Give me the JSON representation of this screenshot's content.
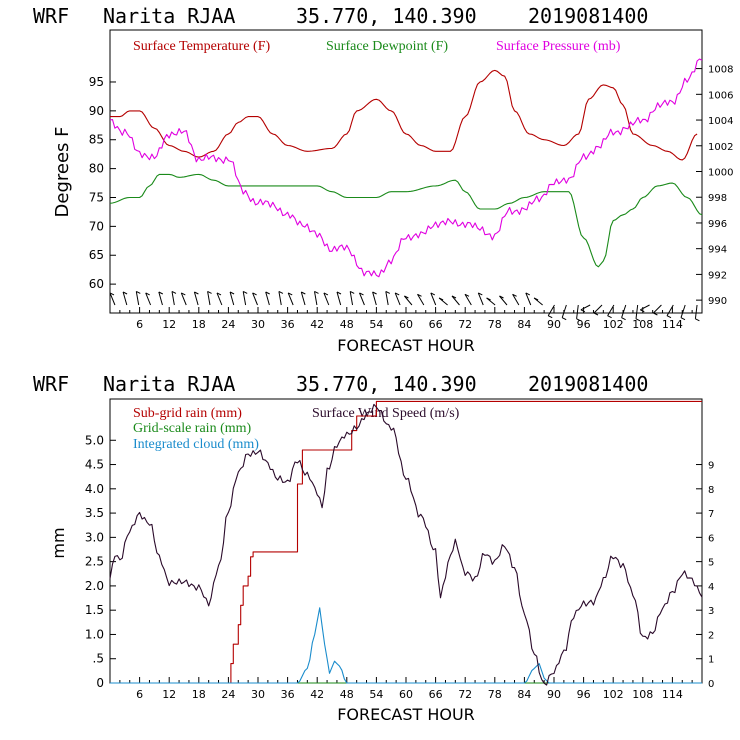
{
  "chart_data": [
    {
      "type": "line",
      "header": {
        "model": "WRF",
        "station": "Narita RJAA",
        "coords": "35.770, 140.390",
        "init": "2019081400"
      },
      "xlabel": "FORECAST HOUR",
      "ylabel": "Degrees F",
      "xlim": [
        0,
        120
      ],
      "ylim": [
        55,
        104
      ],
      "x_ticks": [
        "6",
        "12",
        "18",
        "24",
        "30",
        "36",
        "42",
        "48",
        "54",
        "60",
        "66",
        "72",
        "78",
        "84",
        "90",
        "96",
        "102",
        "108",
        "114"
      ],
      "left_ticks": [
        "60",
        "65",
        "70",
        "75",
        "80",
        "85",
        "90",
        "95"
      ],
      "right_ylim": [
        989,
        1011
      ],
      "right_ticks": [
        "990",
        "992",
        "994",
        "996",
        "998",
        "1000",
        "1002",
        "1004",
        "1006",
        "1008"
      ],
      "legend": [
        "Surface Temperature (F)",
        "Surface Dewpoint (F)",
        "Surface Pressure (mb)"
      ],
      "colors": {
        "temp": "#b40000",
        "dew": "#1a8a1a",
        "pres": "#e000e0",
        "wind": "#222222"
      },
      "series": [
        {
          "name": "Surface Temperature (F)",
          "axis": "left",
          "points": [
            [
              0,
              89
            ],
            [
              2,
              89
            ],
            [
              4,
              90
            ],
            [
              6,
              90
            ],
            [
              9,
              87
            ],
            [
              12,
              84
            ],
            [
              15,
              83
            ],
            [
              18,
              82
            ],
            [
              21,
              83
            ],
            [
              24,
              86
            ],
            [
              26,
              88
            ],
            [
              28,
              89
            ],
            [
              30,
              89
            ],
            [
              33,
              86
            ],
            [
              36,
              84
            ],
            [
              40,
              83
            ],
            [
              45,
              83.5
            ],
            [
              48,
              86
            ],
            [
              50,
              90
            ],
            [
              54,
              92
            ],
            [
              57,
              90
            ],
            [
              60,
              86
            ],
            [
              63,
              84
            ],
            [
              66,
              83
            ],
            [
              69,
              83
            ],
            [
              72,
              89
            ],
            [
              75,
              95
            ],
            [
              78,
              97
            ],
            [
              80,
              96
            ],
            [
              82,
              90
            ],
            [
              85,
              86
            ],
            [
              88,
              85
            ],
            [
              92,
              84
            ],
            [
              95,
              86
            ],
            [
              97,
              92
            ],
            [
              100,
              94.5
            ],
            [
              102,
              94
            ],
            [
              104,
              91
            ],
            [
              106,
              86
            ],
            [
              110,
              84
            ],
            [
              113,
              83
            ],
            [
              116,
              81.5
            ],
            [
              119,
              86
            ]
          ]
        },
        {
          "name": "Surface Dewpoint (F)",
          "axis": "left",
          "points": [
            [
              0,
              74
            ],
            [
              4,
              75
            ],
            [
              6,
              75
            ],
            [
              8,
              77
            ],
            [
              10,
              79
            ],
            [
              12,
              79
            ],
            [
              14,
              78.5
            ],
            [
              18,
              79
            ],
            [
              21,
              78
            ],
            [
              24,
              77
            ],
            [
              30,
              77
            ],
            [
              36,
              77
            ],
            [
              42,
              77
            ],
            [
              45,
              76
            ],
            [
              48,
              75
            ],
            [
              51,
              75
            ],
            [
              54,
              75
            ],
            [
              57,
              76
            ],
            [
              60,
              76
            ],
            [
              66,
              77
            ],
            [
              70,
              78
            ],
            [
              72,
              76
            ],
            [
              75,
              73
            ],
            [
              78,
              73
            ],
            [
              81,
              74
            ],
            [
              84,
              75
            ],
            [
              88,
              76
            ],
            [
              93,
              76
            ],
            [
              96,
              68
            ],
            [
              99,
              63
            ],
            [
              100,
              64
            ],
            [
              102,
              71
            ],
            [
              104,
              72
            ],
            [
              106,
              73
            ],
            [
              108,
              75
            ],
            [
              111,
              77
            ],
            [
              114,
              77.5
            ],
            [
              117,
              75
            ],
            [
              120,
              72
            ]
          ]
        },
        {
          "name": "Surface Pressure (mb)",
          "axis": "right",
          "points": [
            [
              0,
              1004
            ],
            [
              3,
              1003
            ],
            [
              6,
              1001.5
            ],
            [
              9,
              1001
            ],
            [
              12,
              1003
            ],
            [
              15,
              1003
            ],
            [
              18,
              1001
            ],
            [
              21,
              1001
            ],
            [
              24,
              1001
            ],
            [
              27,
              998.5
            ],
            [
              30,
              997.5
            ],
            [
              33,
              997.5
            ],
            [
              36,
              996.5
            ],
            [
              39,
              996
            ],
            [
              42,
              995
            ],
            [
              45,
              994
            ],
            [
              48,
              994
            ],
            [
              52,
              992
            ],
            [
              54,
              992
            ],
            [
              57,
              993
            ],
            [
              60,
              995
            ],
            [
              63,
              995
            ],
            [
              66,
              996
            ],
            [
              69,
              996
            ],
            [
              72,
              996
            ],
            [
              75,
              995.5
            ],
            [
              78,
              995
            ],
            [
              81,
              997
            ],
            [
              84,
              997
            ],
            [
              87,
              998
            ],
            [
              90,
              999
            ],
            [
              93,
              999.5
            ],
            [
              96,
              1001
            ],
            [
              99,
              1002
            ],
            [
              102,
              1003
            ],
            [
              105,
              1003.5
            ],
            [
              108,
              1004
            ],
            [
              111,
              1005
            ],
            [
              114,
              1005.5
            ],
            [
              117,
              1007
            ],
            [
              120,
              1009
            ]
          ]
        }
      ],
      "wind_barb_count": 50
    },
    {
      "type": "line",
      "header": {
        "model": "WRF",
        "station": "Narita RJAA",
        "coords": "35.770, 140.390",
        "init": "2019081400"
      },
      "xlabel": "FORECAST HOUR",
      "ylabel": "mm",
      "xlim": [
        0,
        120
      ],
      "ylim": [
        0,
        5.85
      ],
      "x_ticks": [
        "6",
        "12",
        "18",
        "24",
        "30",
        "36",
        "42",
        "48",
        "54",
        "60",
        "66",
        "72",
        "78",
        "84",
        "90",
        "96",
        "102",
        "108",
        "114"
      ],
      "left_ticks": [
        "0",
        ".5",
        "1.0",
        "1.5",
        "2.0",
        "2.5",
        "3.0",
        "3.5",
        "4.0",
        "4.5",
        "5.0"
      ],
      "right_ylim": [
        0,
        11.7
      ],
      "right_ticks": [
        "0",
        "1",
        "2",
        "3",
        "4",
        "5",
        "6",
        "7",
        "8",
        "9"
      ],
      "legend": [
        "Sub-grid rain (mm)",
        "Grid-scale rain (mm)",
        "Integrated cloud (mm)",
        "Surface Wind Speed (m/s)"
      ],
      "colors": {
        "subgrid": "#b40000",
        "gridscale": "#1a8a1a",
        "cloud": "#1a8ccc",
        "wind": "#2a0a2a"
      },
      "series": [
        {
          "name": "Sub-grid rain (mm)",
          "axis": "left",
          "step": true,
          "points": [
            [
              0,
              0
            ],
            [
              24,
              0
            ],
            [
              24.5,
              0.4
            ],
            [
              25,
              0.8
            ],
            [
              26,
              1.2
            ],
            [
              26.5,
              1.6
            ],
            [
              27,
              2.0
            ],
            [
              28,
              2.2
            ],
            [
              28.5,
              2.6
            ],
            [
              29,
              2.7
            ],
            [
              37,
              2.7
            ],
            [
              38,
              4.1
            ],
            [
              39,
              4.8
            ],
            [
              48,
              4.8
            ],
            [
              49,
              5.2
            ],
            [
              50,
              5.5
            ],
            [
              54,
              5.8
            ],
            [
              120,
              5.8
            ]
          ]
        },
        {
          "name": "Grid-scale rain (mm)",
          "axis": "left",
          "points": [
            [
              0,
              0
            ],
            [
              120,
              0
            ]
          ]
        },
        {
          "name": "Integrated cloud (mm)",
          "axis": "left",
          "points": [
            [
              0,
              0
            ],
            [
              38,
              0
            ],
            [
              40,
              0.3
            ],
            [
              41.5,
              1.0
            ],
            [
              42.5,
              1.55
            ],
            [
              43.5,
              0.8
            ],
            [
              44.5,
              0.2
            ],
            [
              45.5,
              0.45
            ],
            [
              46.5,
              0.35
            ],
            [
              48,
              0
            ],
            [
              84,
              0
            ],
            [
              86,
              0.3
            ],
            [
              87,
              0.4
            ],
            [
              88,
              0.1
            ],
            [
              89,
              0
            ],
            [
              120,
              0
            ]
          ]
        },
        {
          "name": "Surface Wind Speed (m/s)",
          "axis": "right",
          "points": [
            [
              0,
              4.3
            ],
            [
              1,
              5.4
            ],
            [
              2,
              5.1
            ],
            [
              4,
              6.2
            ],
            [
              6,
              7.0
            ],
            [
              8,
              6.6
            ],
            [
              10,
              5.1
            ],
            [
              12,
              4.2
            ],
            [
              15,
              4.1
            ],
            [
              18,
              4.0
            ],
            [
              20,
              3.2
            ],
            [
              22,
              4.8
            ],
            [
              24,
              7.1
            ],
            [
              26,
              8.6
            ],
            [
              28,
              9.5
            ],
            [
              30,
              9.5
            ],
            [
              32,
              9.0
            ],
            [
              34,
              8.5
            ],
            [
              36,
              8.2
            ],
            [
              38,
              9.2
            ],
            [
              40,
              8.6
            ],
            [
              42,
              7.8
            ],
            [
              43,
              7.2
            ],
            [
              44,
              8.8
            ],
            [
              46,
              9.8
            ],
            [
              48,
              10.2
            ],
            [
              50,
              10.6
            ],
            [
              52,
              11.0
            ],
            [
              54,
              11.4
            ],
            [
              57,
              10.5
            ],
            [
              60,
              8.5
            ],
            [
              63,
              6.8
            ],
            [
              66,
              5.5
            ],
            [
              67,
              3.5
            ],
            [
              68,
              4.4
            ],
            [
              69,
              5.2
            ],
            [
              70,
              5.8
            ],
            [
              72,
              4.6
            ],
            [
              74,
              4.2
            ],
            [
              76,
              5.4
            ],
            [
              78,
              5.0
            ],
            [
              80,
              5.6
            ],
            [
              82,
              4.8
            ],
            [
              84,
              2.8
            ],
            [
              86,
              1.2
            ],
            [
              88,
              0.0
            ],
            [
              90,
              0.4
            ],
            [
              92,
              1.3
            ],
            [
              94,
              2.8
            ],
            [
              96,
              3.2
            ],
            [
              98,
              3.4
            ],
            [
              100,
              4.2
            ],
            [
              102,
              5.2
            ],
            [
              104,
              4.9
            ],
            [
              106,
              3.6
            ],
            [
              108,
              1.9
            ],
            [
              110,
              2.1
            ],
            [
              112,
              3.0
            ],
            [
              114,
              3.8
            ],
            [
              116,
              4.5
            ],
            [
              118,
              4.2
            ],
            [
              120,
              3.7
            ]
          ]
        }
      ]
    }
  ]
}
